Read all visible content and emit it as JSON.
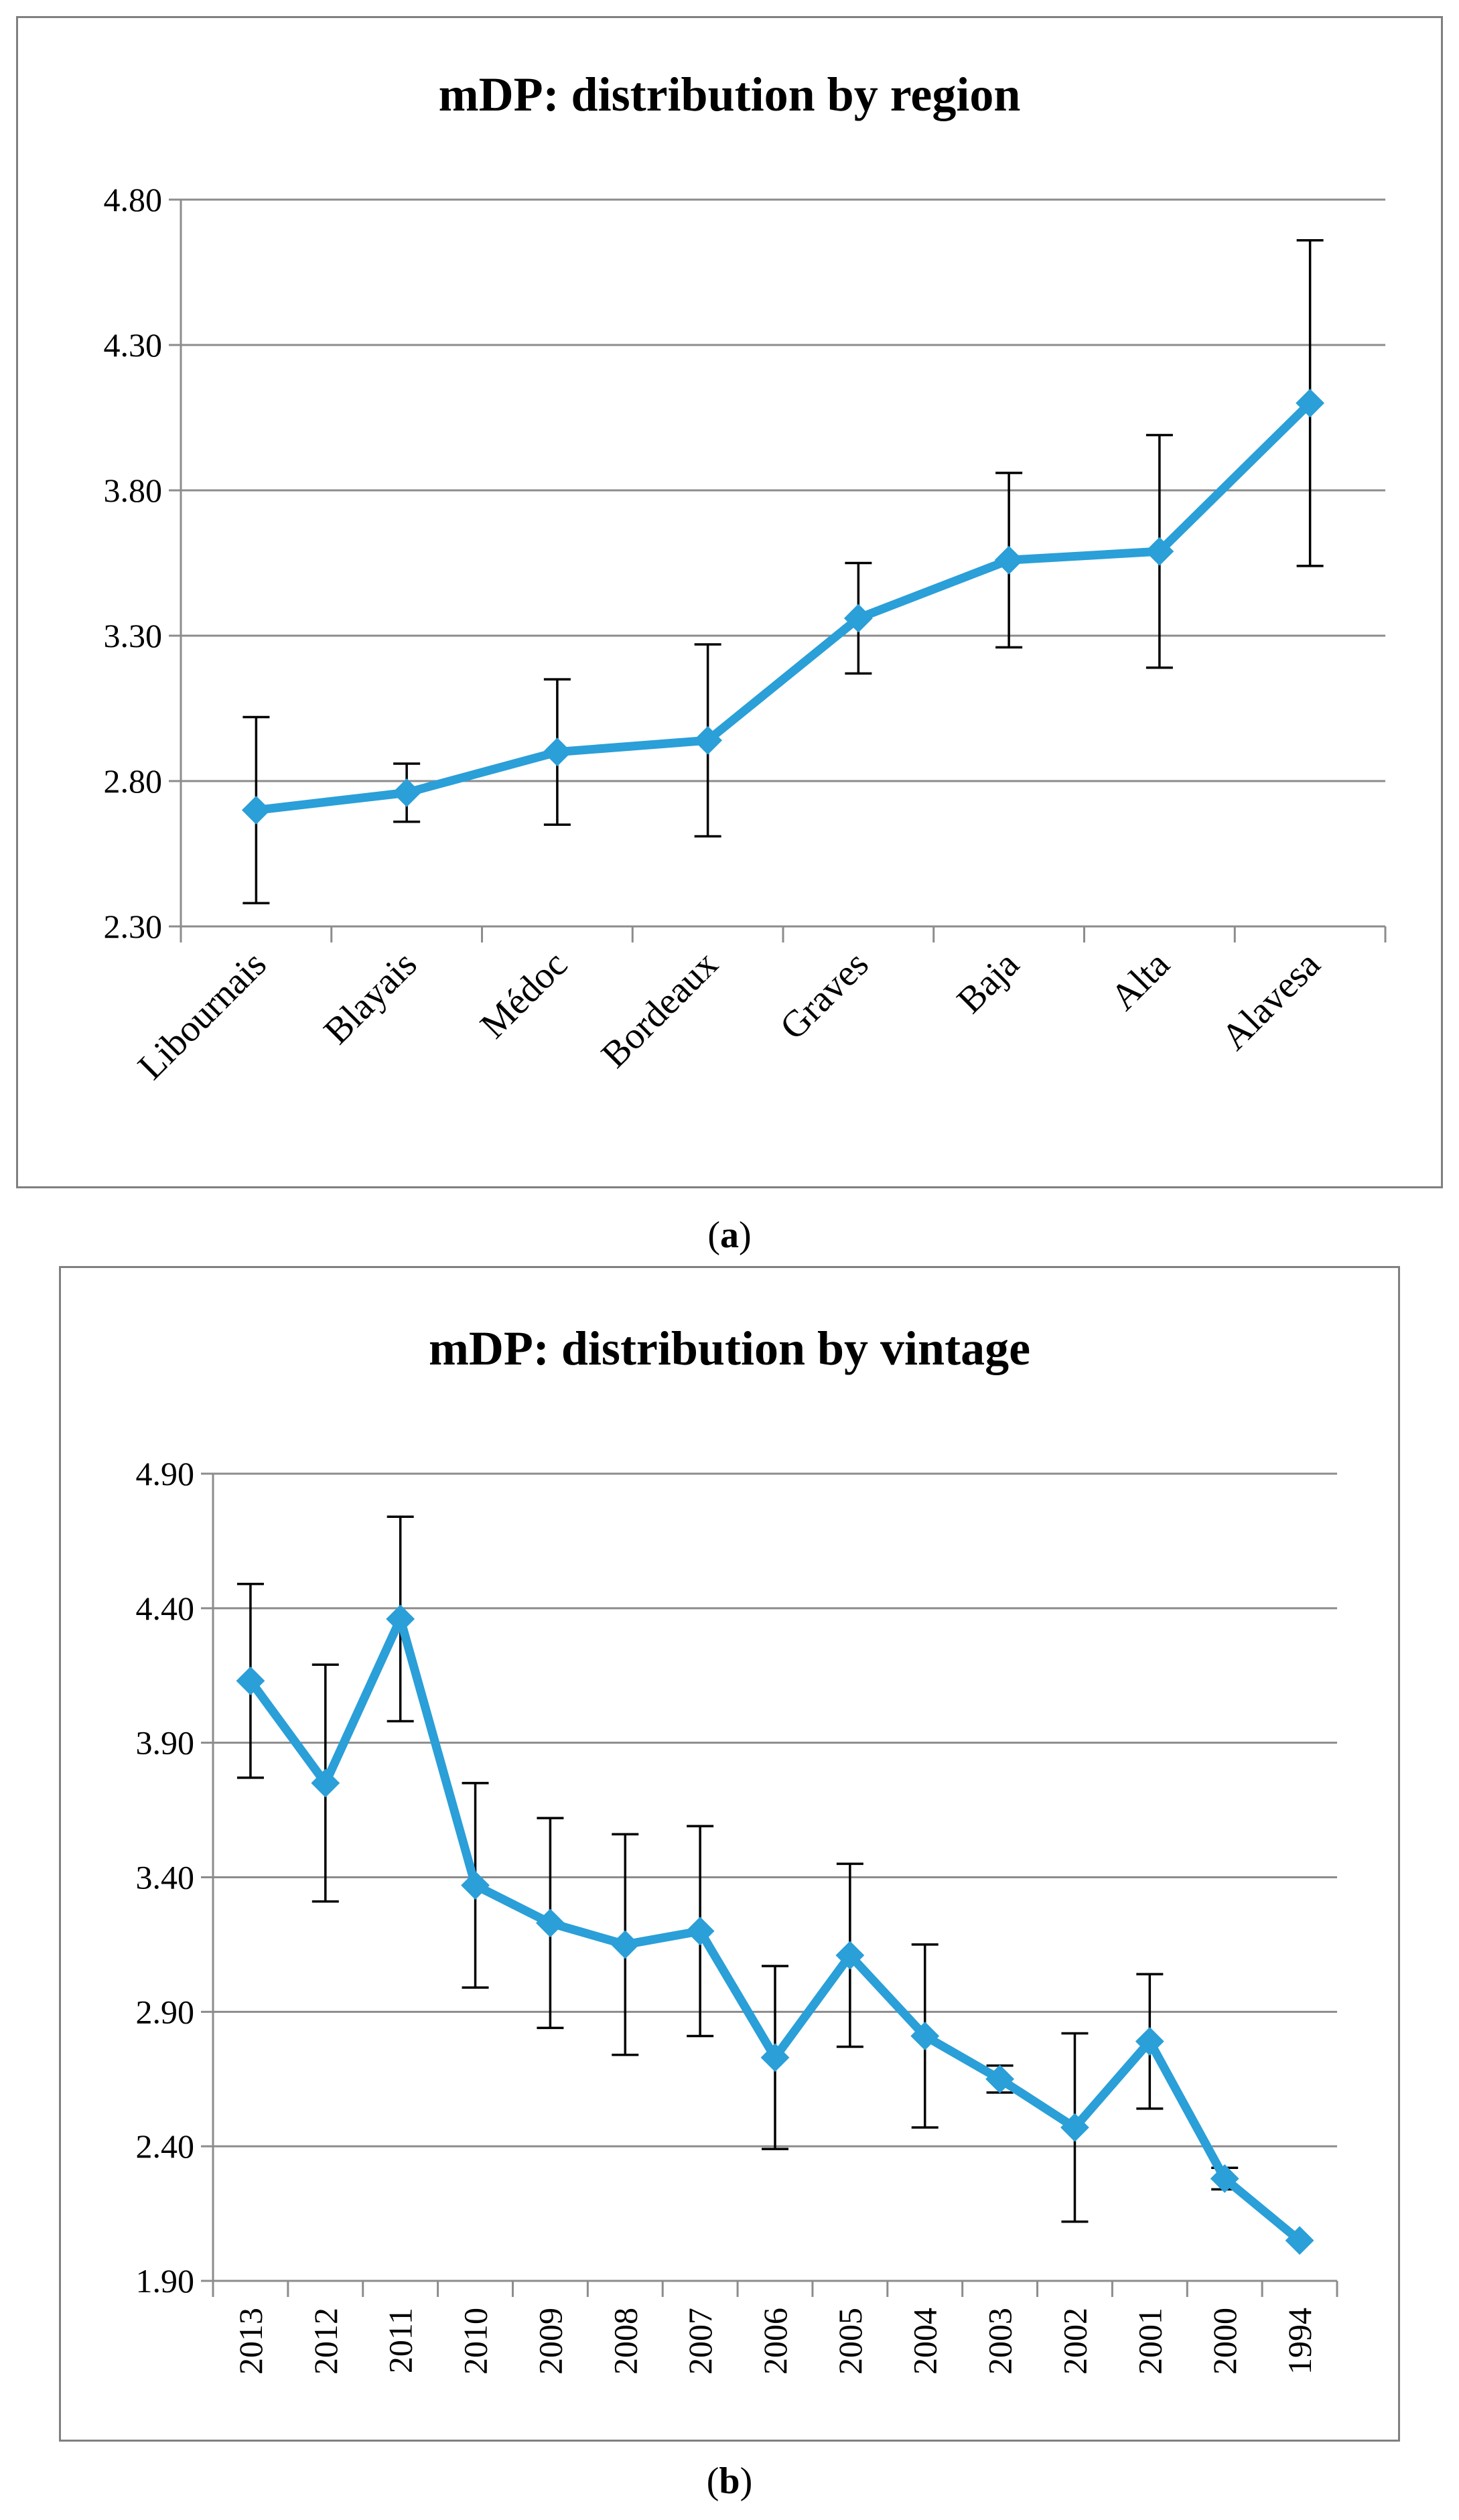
{
  "chart_data": [
    {
      "type": "line",
      "id": "a",
      "title": "mDP: distribution by region",
      "caption": "a",
      "categories": [
        "Libournais",
        "Blayais",
        "Médoc",
        "Bordeaux",
        "Graves",
        "Baja",
        "Alta",
        "Alavesa"
      ],
      "series": [
        {
          "name": "mDP",
          "values": [
            2.7,
            2.76,
            2.9,
            2.94,
            3.36,
            3.56,
            3.59,
            4.1
          ],
          "error": [
            0.32,
            0.1,
            0.25,
            0.33,
            0.19,
            0.3,
            0.4,
            0.56
          ]
        }
      ],
      "ylim": [
        2.3,
        4.8
      ],
      "yticks": [
        "2.30",
        "2.80",
        "3.30",
        "3.80",
        "4.30",
        "4.80"
      ],
      "xlabel": "",
      "ylabel": "",
      "grid": "horizontal",
      "color": "#2a9fd8"
    },
    {
      "type": "line",
      "id": "b",
      "title": "mDP: distribution by vintage",
      "caption": "b",
      "categories": [
        "2013",
        "2012",
        "2011",
        "2010",
        "2009",
        "2008",
        "2007",
        "2006",
        "2005",
        "2004",
        "2003",
        "2002",
        "2001",
        "2000",
        "1994"
      ],
      "series": [
        {
          "name": "mDP",
          "values": [
            4.13,
            3.75,
            4.36,
            3.37,
            3.23,
            3.15,
            3.2,
            2.73,
            3.11,
            2.81,
            2.65,
            2.47,
            2.79,
            2.28,
            2.05
          ],
          "error": [
            0.36,
            0.44,
            0.38,
            0.38,
            0.39,
            0.41,
            0.39,
            0.34,
            0.34,
            0.34,
            0.05,
            0.35,
            0.25,
            0.04,
            0.0
          ]
        }
      ],
      "ylim": [
        1.9,
        4.9
      ],
      "yticks": [
        "1.90",
        "2.40",
        "2.90",
        "3.40",
        "3.90",
        "4.40",
        "4.90"
      ],
      "xlabel": "",
      "ylabel": "",
      "grid": "horizontal",
      "color": "#2a9fd8"
    }
  ]
}
